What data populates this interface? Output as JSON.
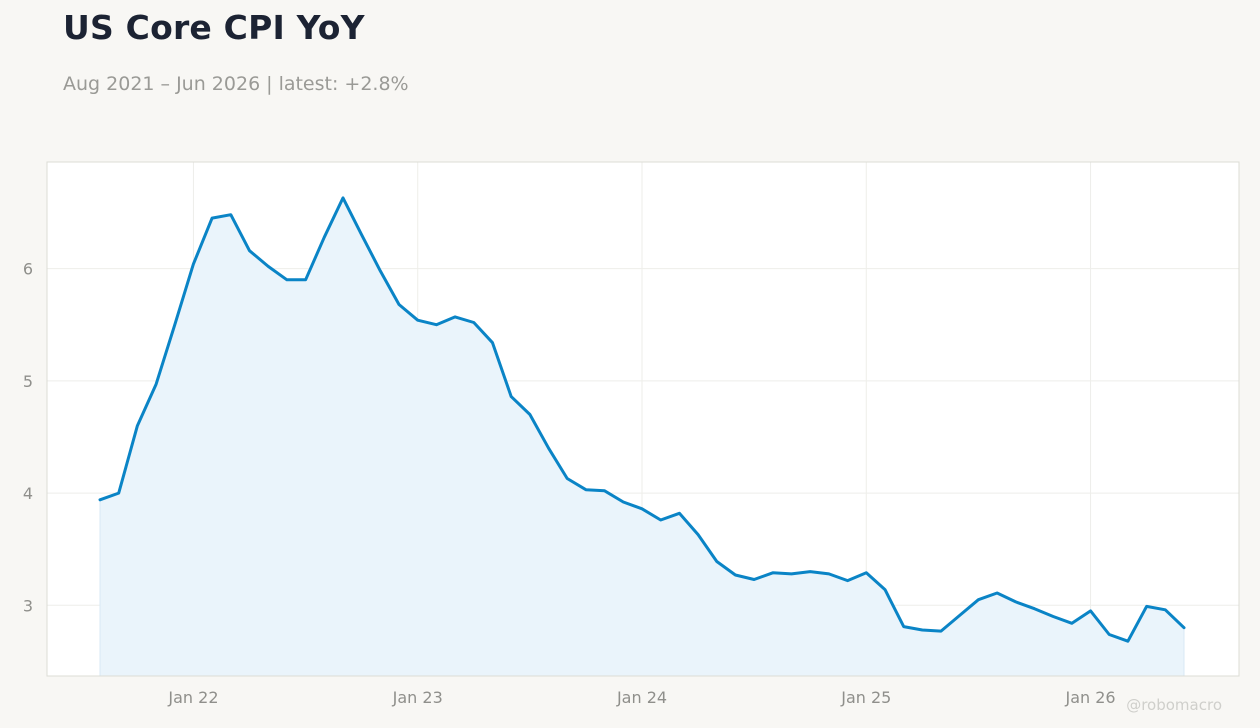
{
  "header": {
    "title": "US Core CPI YoY",
    "subtitle_range": "Aug 2021 – Jun 2026",
    "subtitle_latest": "latest: +2.8%"
  },
  "watermark": "@robomacro",
  "colors": {
    "line": "#0a84c6",
    "fill": "#eaf4fb",
    "grid": "#eeeeea",
    "frame": "#dcdcd6",
    "background": "#f8f7f4",
    "plot_background": "#ffffff"
  },
  "chart_data": {
    "type": "area",
    "title": "US Core CPI YoY",
    "xlabel": "",
    "ylabel": "",
    "x_start": "2021-08",
    "x_end": "2026-06",
    "x_ticks": [
      {
        "date": "2022-01",
        "label": "Jan 22"
      },
      {
        "date": "2023-01",
        "label": "Jan 23"
      },
      {
        "date": "2024-01",
        "label": "Jan 24"
      },
      {
        "date": "2025-01",
        "label": "Jan 25"
      },
      {
        "date": "2026-01",
        "label": "Jan 26"
      }
    ],
    "y_ticks": [
      3,
      4,
      5,
      6
    ],
    "ylim": [
      2.37,
      6.95
    ],
    "grid": true,
    "series": [
      {
        "x": [
          "2021-08",
          "2021-09",
          "2021-10",
          "2021-11",
          "2021-12",
          "2022-01",
          "2022-02",
          "2022-03",
          "2022-04",
          "2022-05",
          "2022-06",
          "2022-07",
          "2022-08",
          "2022-09",
          "2022-10",
          "2022-11",
          "2022-12",
          "2023-01",
          "2023-02",
          "2023-03",
          "2023-04",
          "2023-05",
          "2023-06",
          "2023-07",
          "2023-08",
          "2023-09",
          "2023-10",
          "2023-11",
          "2023-12",
          "2024-01",
          "2024-02",
          "2024-03",
          "2024-04",
          "2024-05",
          "2024-06",
          "2024-07",
          "2024-08",
          "2024-09",
          "2024-10",
          "2024-11",
          "2024-12",
          "2025-01",
          "2025-02",
          "2025-03",
          "2025-04",
          "2025-05",
          "2025-06",
          "2025-07",
          "2025-08",
          "2025-09",
          "2025-10",
          "2025-11",
          "2025-12",
          "2026-01",
          "2026-02",
          "2026-03",
          "2026-04",
          "2026-05",
          "2026-06"
        ],
        "values": [
          3.94,
          4.0,
          4.6,
          4.97,
          5.5,
          6.04,
          6.45,
          6.48,
          6.16,
          6.02,
          5.9,
          5.9,
          6.28,
          6.63,
          6.3,
          5.98,
          5.68,
          5.54,
          5.5,
          5.57,
          5.52,
          5.34,
          4.86,
          4.7,
          4.4,
          4.13,
          4.03,
          4.02,
          3.92,
          3.86,
          3.76,
          3.82,
          3.63,
          3.39,
          3.27,
          3.23,
          3.29,
          3.28,
          3.3,
          3.28,
          3.22,
          3.29,
          3.14,
          2.81,
          2.78,
          2.77,
          2.91,
          3.05,
          3.11,
          3.03,
          2.97,
          2.9,
          2.84,
          2.95,
          2.74,
          2.68,
          2.99,
          2.96,
          2.8
        ]
      }
    ]
  }
}
